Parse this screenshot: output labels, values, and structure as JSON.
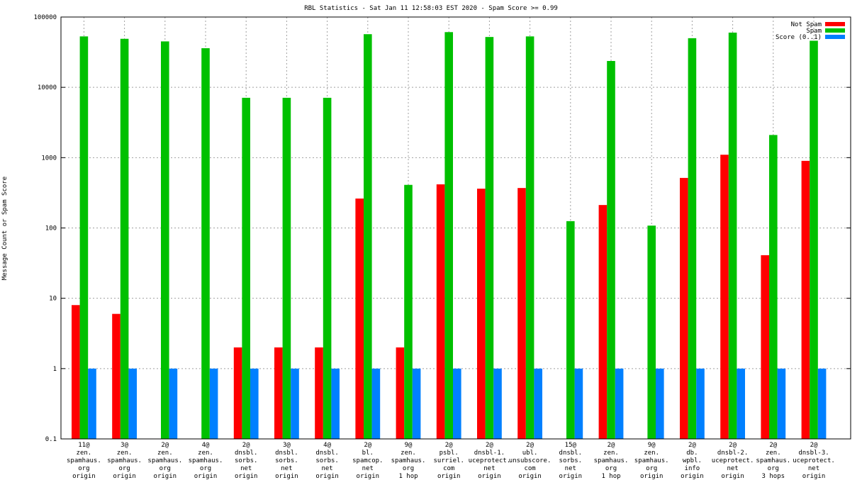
{
  "chart_data": {
    "type": "bar",
    "title": "RBL Statistics - Sat Jan 11 12:58:03 EST 2020 - Spam Score >= 0.99",
    "xlabel": "",
    "ylabel": "Message Count or Spam Score",
    "yscale": "log",
    "ylim": [
      0.1,
      100000
    ],
    "yticks": [
      "0.1",
      "1",
      "10",
      "100",
      "1000",
      "10000",
      "100000"
    ],
    "grid": true,
    "legend_position": "top-right",
    "categories": [
      [
        "11@",
        "zen.",
        "spamhaus.",
        "org",
        "origin"
      ],
      [
        "3@",
        "zen.",
        "spamhaus.",
        "org",
        "origin"
      ],
      [
        "2@",
        "zen.",
        "spamhaus.",
        "org",
        "origin"
      ],
      [
        "4@",
        "zen.",
        "spamhaus.",
        "org",
        "origin"
      ],
      [
        "2@",
        "dnsbl.",
        "sorbs.",
        "net",
        "origin"
      ],
      [
        "3@",
        "dnsbl.",
        "sorbs.",
        "net",
        "origin"
      ],
      [
        "4@",
        "dnsbl.",
        "sorbs.",
        "net",
        "origin"
      ],
      [
        "2@",
        "bl.",
        "spamcop.",
        "net",
        "origin"
      ],
      [
        "9@",
        "zen.",
        "spamhaus.",
        "org",
        "1 hop"
      ],
      [
        "2@",
        "psbl.",
        "surriel.",
        "com",
        "origin"
      ],
      [
        "2@",
        "dnsbl-1.",
        "uceprotect.",
        "net",
        "origin"
      ],
      [
        "2@",
        "ubl.",
        "unsubscore.",
        "com",
        "origin"
      ],
      [
        "15@",
        "dnsbl.",
        "sorbs.",
        "net",
        "origin"
      ],
      [
        "2@",
        "zen.",
        "spamhaus.",
        "org",
        "1 hop"
      ],
      [
        "9@",
        "zen.",
        "spamhaus.",
        "org",
        "origin"
      ],
      [
        "2@",
        "db.",
        "wpbl.",
        "info",
        "origin"
      ],
      [
        "2@",
        "dnsbl-2.",
        "uceprotect.",
        "net",
        "origin"
      ],
      [
        "2@",
        "zen.",
        "spamhaus.",
        "org",
        "3 hops"
      ],
      [
        "2@",
        "dnsbl-3.",
        "uceprotect.",
        "net",
        "origin"
      ]
    ],
    "series": [
      {
        "name": "Not Spam",
        "color": "#ff0000",
        "values": [
          8,
          6,
          0,
          0,
          2,
          2,
          2,
          262,
          2,
          417,
          362,
          370,
          0,
          212,
          0,
          515,
          1100,
          41,
          900
        ]
      },
      {
        "name": "Spam",
        "color": "#00c000",
        "values": [
          53000,
          49000,
          45000,
          36000,
          7100,
          7100,
          7100,
          57000,
          410,
          61000,
          52000,
          53000,
          125,
          23700,
          108,
          50000,
          60000,
          2100,
          46000
        ]
      },
      {
        "name": "Score (0..1)",
        "color": "#0080ff",
        "values": [
          1,
          1,
          1,
          1,
          1,
          1,
          1,
          1,
          1,
          1,
          1,
          1,
          1,
          1,
          1,
          1,
          1,
          1,
          1
        ]
      }
    ]
  }
}
